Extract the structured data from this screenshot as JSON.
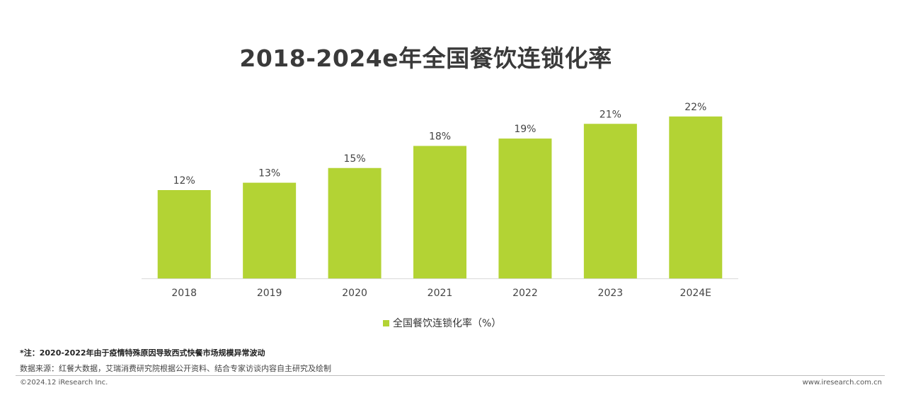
{
  "chart_data": {
    "type": "bar",
    "title": "2018-2024e年全国餐饮连锁化率",
    "categories": [
      "2018",
      "2019",
      "2020",
      "2021",
      "2022",
      "2023",
      "2024E"
    ],
    "series": [
      {
        "name": "全国餐饮连锁化率（%）",
        "values": [
          12,
          13,
          15,
          18,
          19,
          21,
          22
        ],
        "labels": [
          "12%",
          "13%",
          "15%",
          "18%",
          "19%",
          "21%",
          "22%"
        ]
      }
    ],
    "ylim": [
      0,
      22
    ],
    "xlabel": "",
    "ylabel": "",
    "grid": false,
    "legend": "bottom-center",
    "bar_color": "#b3d334"
  },
  "footnote": {
    "note": "*注：2020-2022年由于疫情特殊原因导致西式快餐市场规模异常波动",
    "source": "数据来源：红餐大数据，艾瑞消费研究院根据公开资料、结合专家访谈内容自主研究及绘制"
  },
  "footer": {
    "copyright": "©2024.12 iResearch Inc.",
    "website": "www.iresearch.com.cn"
  }
}
